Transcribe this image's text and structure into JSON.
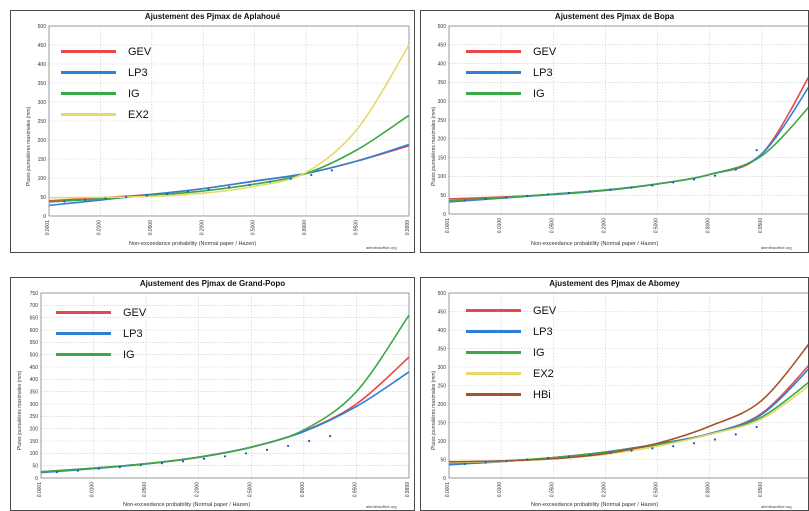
{
  "panels": [
    {
      "id": "aplahoue",
      "title": "Ajustement des Pjmax de Aplahoué",
      "ylabel": "Pluies journalières maximales (mm)",
      "xlabel": "Non-exceedance probability (Normal paper / Hazen)",
      "credit": "alemitraoffice.org",
      "chart_data": {
        "type": "line",
        "x_ticks": [
          "0.0001",
          "0.0100",
          "0.0500",
          "0.2000",
          "0.5000",
          "0.8000",
          "0.9500",
          "0.9999"
        ],
        "ylim": [
          0,
          500
        ],
        "y_ticks": [
          0,
          50,
          100,
          150,
          200,
          250,
          300,
          350,
          400,
          450,
          500
        ],
        "series": [
          {
            "name": "GEV",
            "color": "#e8474b",
            "x": [
              0,
              1,
              2,
              3,
              4,
              5,
              6,
              7
            ],
            "y": [
              40,
              48,
              57,
              72,
              92,
              112,
              145,
              185
            ]
          },
          {
            "name": "LP3",
            "color": "#2f7fd6",
            "x": [
              0,
              1,
              2,
              3,
              4,
              5,
              6,
              7
            ],
            "y": [
              28,
              42,
              57,
              72,
              92,
              112,
              145,
              188
            ]
          },
          {
            "name": "IG",
            "color": "#3aa845",
            "x": [
              0,
              1,
              2,
              3,
              4,
              5,
              6,
              7
            ],
            "y": [
              37,
              45,
              54,
              66,
              84,
              112,
              175,
              265
            ]
          },
          {
            "name": "EX2",
            "color": "#e6d86a",
            "x": [
              0,
              1,
              2,
              3,
              4,
              5,
              6,
              7
            ],
            "y": [
              48,
              49,
              52,
              60,
              78,
              115,
              230,
              450
            ]
          }
        ],
        "observed": {
          "x": [
            0.3,
            0.7,
            1.1,
            1.5,
            1.9,
            2.3,
            2.7,
            3.1,
            3.5,
            3.9,
            4.3,
            4.7,
            5.1,
            5.5
          ],
          "y": [
            38,
            42,
            46,
            50,
            54,
            58,
            64,
            70,
            76,
            82,
            90,
            98,
            108,
            120
          ]
        }
      }
    },
    {
      "id": "bopa",
      "title": "Ajustement des Pjmax de Bopa",
      "ylabel": "Pluies journalières maximales (mm)",
      "xlabel": "Non-exceedance probability (Normal paper / Hazen)",
      "credit": "alemitraoffice.org",
      "chart_data": {
        "type": "line",
        "x_ticks": [
          "0.0001",
          "0.0100",
          "0.0500",
          "0.2000",
          "0.5000",
          "0.8000",
          "0.9500",
          "0.9999"
        ],
        "ylim": [
          0,
          500
        ],
        "y_ticks": [
          0,
          50,
          100,
          150,
          200,
          250,
          300,
          350,
          400,
          450,
          500
        ],
        "series": [
          {
            "name": "GEV",
            "color": "#e8474b",
            "x": [
              0,
              1,
              2,
              3,
              4,
              5,
              6,
              7
            ],
            "y": [
              40,
              45,
              52,
              63,
              80,
              105,
              160,
              390
            ]
          },
          {
            "name": "LP3",
            "color": "#2f7fd6",
            "x": [
              0,
              1,
              2,
              3,
              4,
              5,
              6,
              7
            ],
            "y": [
              32,
              42,
              52,
              63,
              80,
              105,
              160,
              360
            ]
          },
          {
            "name": "IG",
            "color": "#3aa845",
            "x": [
              0,
              1,
              2,
              3,
              4,
              5,
              6,
              7
            ],
            "y": [
              35,
              43,
              53,
              64,
              80,
              105,
              155,
              300
            ]
          }
        ],
        "observed": {
          "x": [
            0.3,
            0.7,
            1.1,
            1.5,
            1.9,
            2.3,
            2.7,
            3.1,
            3.5,
            3.9,
            4.3,
            4.7,
            5.1,
            5.5,
            5.9
          ],
          "y": [
            36,
            40,
            44,
            48,
            52,
            56,
            60,
            64,
            70,
            76,
            84,
            92,
            102,
            118,
            170
          ]
        }
      }
    },
    {
      "id": "grandpopo",
      "title": "Ajustement des Pjmax de Grand-Popo",
      "ylabel": "Pluies journalières maximales (mm)",
      "xlabel": "Non-exceedance probability (Normal paper / Hazen)",
      "credit": "alemitraoffice.org",
      "chart_data": {
        "type": "line",
        "x_ticks": [
          "0.0001",
          "0.0100",
          "0.0500",
          "0.2000",
          "0.5000",
          "0.8000",
          "0.9500",
          "0.9999"
        ],
        "ylim": [
          0,
          750
        ],
        "y_ticks": [
          0,
          50,
          100,
          150,
          200,
          250,
          300,
          350,
          400,
          450,
          500,
          550,
          600,
          650,
          700,
          750
        ],
        "series": [
          {
            "name": "GEV",
            "color": "#e8474b",
            "x": [
              0,
              1,
              2,
              3,
              4,
              5,
              6,
              7
            ],
            "y": [
              25,
              40,
              58,
              85,
              125,
              190,
              300,
              490
            ]
          },
          {
            "name": "LP3",
            "color": "#2f7fd6",
            "x": [
              0,
              1,
              2,
              3,
              4,
              5,
              6,
              7
            ],
            "y": [
              22,
              38,
              57,
              84,
              125,
              188,
              290,
              430
            ]
          },
          {
            "name": "IG",
            "color": "#3aa845",
            "x": [
              0,
              1,
              2,
              3,
              4,
              5,
              6,
              7
            ],
            "y": [
              25,
              40,
              58,
              84,
              125,
              195,
              350,
              660
            ]
          }
        ],
        "observed": {
          "x": [
            0.3,
            0.7,
            1.1,
            1.5,
            1.9,
            2.3,
            2.7,
            3.1,
            3.5,
            3.9,
            4.3,
            4.7,
            5.1,
            5.5
          ],
          "y": [
            24,
            30,
            38,
            44,
            52,
            60,
            68,
            78,
            88,
            100,
            114,
            130,
            150,
            170
          ]
        }
      }
    },
    {
      "id": "abomey",
      "title": "Ajustement des Pjmax de Abomey",
      "ylabel": "Pluies journalières maximales (mm)",
      "xlabel": "Non-exceedance probability (Normal paper / Hazen)",
      "credit": "alemitraoffice.org",
      "chart_data": {
        "type": "line",
        "x_ticks": [
          "0.0001",
          "0.0100",
          "0.0500",
          "0.2000",
          "0.5000",
          "0.8000",
          "0.9500",
          "0.9999"
        ],
        "ylim": [
          0,
          500
        ],
        "y_ticks": [
          0,
          50,
          100,
          150,
          200,
          250,
          300,
          350,
          400,
          450,
          500
        ],
        "series": [
          {
            "name": "GEV",
            "color": "#e8474b",
            "x": [
              0,
              1,
              2,
              3,
              4,
              5,
              6,
              7
            ],
            "y": [
              38,
              45,
              55,
              70,
              92,
              120,
              175,
              320
            ]
          },
          {
            "name": "LP3",
            "color": "#2f7fd6",
            "x": [
              0,
              1,
              2,
              3,
              4,
              5,
              6,
              7
            ],
            "y": [
              36,
              44,
              55,
              70,
              92,
              120,
              172,
              310
            ]
          },
          {
            "name": "IG",
            "color": "#3aa845",
            "x": [
              0,
              1,
              2,
              3,
              4,
              5,
              6,
              7
            ],
            "y": [
              40,
              46,
              55,
              69,
              90,
              118,
              165,
              270
            ]
          },
          {
            "name": "EX2",
            "color": "#e6d86a",
            "x": [
              0,
              1,
              2,
              3,
              4,
              5,
              6,
              7
            ],
            "y": [
              42,
              45,
              52,
              64,
              86,
              118,
              160,
              260
            ]
          },
          {
            "name": "HBi",
            "color": "#a3542a",
            "x": [
              0,
              1,
              2,
              3,
              4,
              5,
              6,
              7
            ],
            "y": [
              44,
              46,
              52,
              66,
              94,
              140,
              210,
              380
            ]
          }
        ],
        "observed": {
          "x": [
            0.3,
            0.7,
            1.1,
            1.5,
            1.9,
            2.3,
            2.7,
            3.1,
            3.5,
            3.9,
            4.3,
            4.7,
            5.1,
            5.5,
            5.9
          ],
          "y": [
            38,
            42,
            46,
            50,
            54,
            58,
            62,
            68,
            74,
            80,
            86,
            94,
            104,
            118,
            138
          ]
        }
      }
    }
  ]
}
